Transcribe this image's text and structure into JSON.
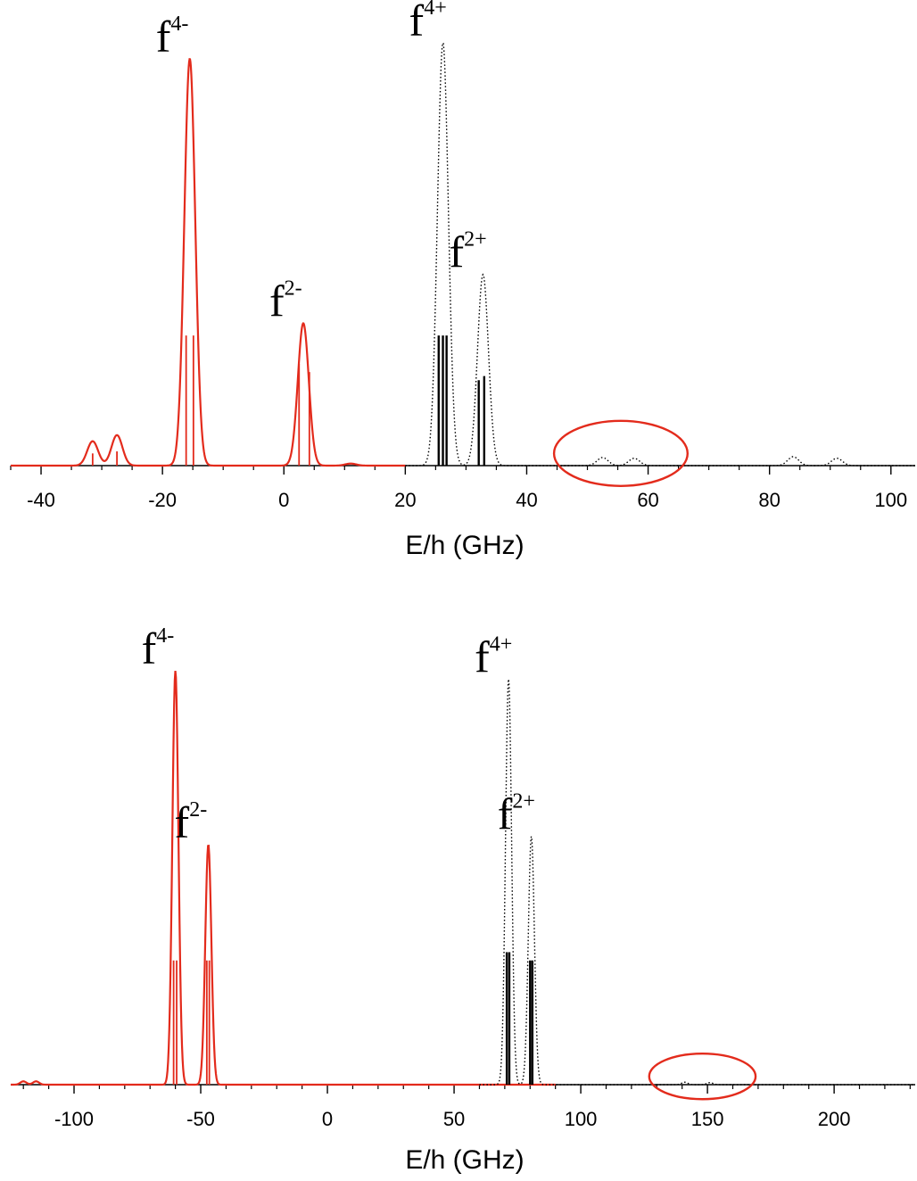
{
  "colors": {
    "minus": "#e32b1c",
    "plus": "#000000",
    "ellipse": "#e32b1c",
    "axis": "#000000"
  },
  "chart_data": [
    {
      "type": "line",
      "xlabel": "E/h (GHz)",
      "ylabel": "",
      "xlim": [
        -45,
        104
      ],
      "ylim": [
        0,
        1
      ],
      "xticks": [
        -40,
        -20,
        0,
        20,
        40,
        60,
        80,
        100
      ],
      "xtick_labels": [
        "-40",
        "-20",
        "0",
        "20",
        "40",
        "60",
        "80",
        "100"
      ],
      "minor_step": 5,
      "sigma": 0.9,
      "series": [
        {
          "style": "solid",
          "color_key": "minus",
          "x_range": [
            -45,
            20
          ],
          "peaks": [
            [
              -31.5,
              0.06
            ],
            [
              -27.5,
              0.075
            ],
            [
              -15.5,
              1.0
            ],
            [
              3.2,
              0.35
            ],
            [
              11,
              0.005
            ]
          ],
          "sticks": [
            [
              -16.1,
              0.32
            ],
            [
              -14.9,
              0.32
            ],
            [
              2.5,
              0.25
            ],
            [
              4.2,
              0.23
            ],
            [
              -31.5,
              0.03
            ],
            [
              -27.5,
              0.035
            ]
          ]
        },
        {
          "style": "dotted",
          "color_key": "plus",
          "x_range": [
            20,
            104
          ],
          "peaks": [
            [
              26.2,
              1.04
            ],
            [
              32.8,
              0.47
            ],
            [
              52.5,
              0.02
            ],
            [
              57.7,
              0.018
            ],
            [
              83.9,
              0.022
            ],
            [
              91.1,
              0.018
            ]
          ],
          "sticks": [
            [
              25.5,
              0.32
            ],
            [
              26.2,
              0.32
            ],
            [
              26.8,
              0.32
            ],
            [
              32.1,
              0.21
            ],
            [
              33.0,
              0.22
            ]
          ]
        }
      ],
      "labels": [
        {
          "base": "f",
          "sup": "4-",
          "x": -15.5,
          "y": 1.0
        },
        {
          "base": "f",
          "sup": "4+",
          "x": 26.2,
          "y": 1.04
        },
        {
          "base": "f",
          "sup": "2-",
          "x": 3.2,
          "y": 0.35
        },
        {
          "base": "f",
          "sup": "2+",
          "x": 32.8,
          "y": 0.47
        }
      ],
      "ellipse": {
        "cx": 55.5,
        "rx": 11,
        "cy": 0.03,
        "ry": 0.08
      }
    },
    {
      "type": "line",
      "xlabel": "E/h (GHz)",
      "ylabel": "",
      "xlim": [
        -125,
        232
      ],
      "ylim": [
        0,
        1
      ],
      "xticks": [
        -100,
        -50,
        0,
        50,
        100,
        150,
        200
      ],
      "xtick_labels": [
        "-100",
        "-50",
        "0",
        "50",
        "100",
        "150",
        "200"
      ],
      "minor_step": 10,
      "sigma": 1.2,
      "series": [
        {
          "style": "solid",
          "color_key": "minus",
          "x_range": [
            -125,
            90
          ],
          "peaks": [
            [
              -120,
              0.008
            ],
            [
              -115,
              0.008
            ],
            [
              -60,
              1.0
            ],
            [
              -47,
              0.58
            ]
          ],
          "sticks": [
            [
              -60.7,
              0.3
            ],
            [
              -59.5,
              0.3
            ],
            [
              -47.6,
              0.3
            ],
            [
              -46.6,
              0.3
            ]
          ]
        },
        {
          "style": "dotted",
          "color_key": "plus",
          "x_range": [
            60,
            232
          ],
          "peaks": [
            [
              71.5,
              0.98
            ],
            [
              80.5,
              0.6
            ],
            [
              141,
              0.006
            ],
            [
              151,
              0.005
            ]
          ],
          "sticks": [
            [
              70.8,
              0.32
            ],
            [
              71.8,
              0.32
            ],
            [
              80.0,
              0.3
            ],
            [
              80.9,
              0.3
            ]
          ]
        }
      ],
      "labels": [
        {
          "base": "f",
          "sup": "4-",
          "x": -60,
          "y": 1.0
        },
        {
          "base": "f",
          "sup": "4+",
          "x": 71.5,
          "y": 0.98
        },
        {
          "base": "f",
          "sup": "2-",
          "x": -47,
          "y": 0.58
        },
        {
          "base": "f",
          "sup": "2+",
          "x": 80.5,
          "y": 0.6
        }
      ],
      "ellipse": {
        "cx": 148,
        "rx": 21,
        "cy": 0.02,
        "ry": 0.055
      }
    }
  ]
}
